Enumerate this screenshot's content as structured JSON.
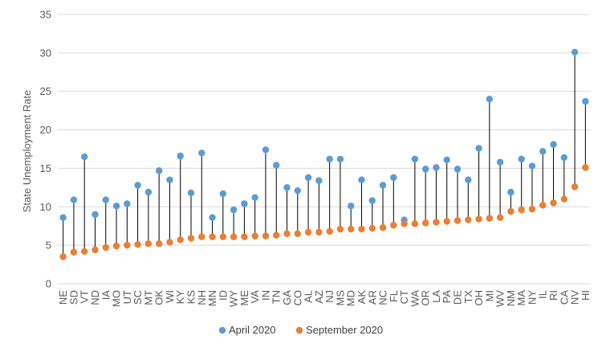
{
  "chart_data": {
    "type": "scatter",
    "ylabel": "State Unemployment Rate",
    "xlabel": "",
    "ylim": [
      0,
      35
    ],
    "yticks": [
      0,
      5,
      10,
      15,
      20,
      25,
      30,
      35
    ],
    "grid": true,
    "legend_position": "bottom",
    "categories": [
      "NE",
      "SD",
      "VT",
      "ND",
      "IA",
      "MO",
      "UT",
      "SC",
      "MT",
      "OK",
      "WI",
      "KY",
      "KS",
      "NH",
      "MN",
      "ID",
      "WY",
      "ME",
      "VA",
      "IN",
      "TN",
      "GA",
      "CO",
      "AL",
      "AZ",
      "NJ",
      "MS",
      "MD",
      "AK",
      "AR",
      "NC",
      "FL",
      "CT",
      "WA",
      "OR",
      "LA",
      "PA",
      "DE",
      "TX",
      "OH",
      "MI",
      "WV",
      "NM",
      "MA",
      "NY",
      "IL",
      "RI",
      "CA",
      "NV",
      "HI"
    ],
    "series": [
      {
        "name": "April 2020",
        "color": "#5b9bd5",
        "values": [
          8.6,
          10.9,
          16.5,
          9.0,
          10.9,
          10.1,
          10.4,
          12.8,
          11.9,
          14.7,
          13.5,
          16.6,
          11.8,
          17.0,
          8.6,
          11.7,
          9.6,
          10.4,
          11.2,
          17.4,
          15.4,
          12.5,
          12.1,
          13.8,
          13.4,
          16.2,
          16.2,
          10.1,
          13.5,
          10.8,
          12.8,
          13.8,
          8.3,
          16.2,
          14.9,
          15.1,
          16.1,
          14.9,
          13.5,
          17.6,
          24.0,
          15.8,
          11.9,
          16.2,
          15.3,
          17.2,
          18.1,
          16.4,
          30.1,
          23.7
        ]
      },
      {
        "name": "September 2020",
        "color": "#ed7d31",
        "values": [
          3.5,
          4.1,
          4.2,
          4.4,
          4.7,
          4.9,
          5.0,
          5.1,
          5.2,
          5.2,
          5.4,
          5.7,
          5.9,
          6.1,
          6.1,
          6.1,
          6.1,
          6.1,
          6.2,
          6.2,
          6.3,
          6.5,
          6.5,
          6.7,
          6.7,
          6.8,
          7.1,
          7.1,
          7.1,
          7.2,
          7.3,
          7.6,
          7.8,
          7.8,
          7.9,
          8.0,
          8.1,
          8.2,
          8.3,
          8.4,
          8.5,
          8.6,
          9.4,
          9.6,
          9.7,
          10.2,
          10.5,
          11.0,
          12.6,
          15.1
        ]
      }
    ]
  }
}
